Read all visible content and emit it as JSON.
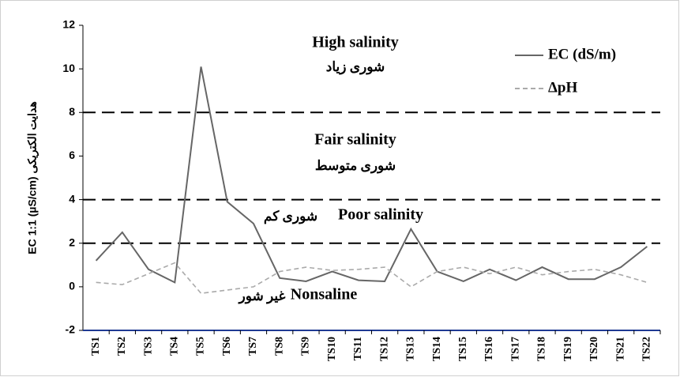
{
  "chart_data": {
    "type": "line",
    "y_label": "EC 1:1 (µS/cm)  هدایت الکتریکی",
    "categories": [
      "TS1",
      "TS2",
      "TS3",
      "TS4",
      "TS5",
      "TS6",
      "TS7",
      "TS8",
      "TS9",
      "TS10",
      "TS11",
      "TS12",
      "TS13",
      "TS14",
      "TS15",
      "TS16",
      "TS17",
      "TS18",
      "TS19",
      "TS20",
      "TS21",
      "TS22"
    ],
    "series": [
      {
        "name": "EC (dS/m)",
        "color": "#666666",
        "dashed": false,
        "values": [
          1.2,
          2.5,
          0.8,
          0.2,
          10.1,
          3.9,
          2.9,
          0.4,
          0.25,
          0.7,
          0.3,
          0.25,
          2.65,
          0.7,
          0.25,
          0.8,
          0.3,
          0.9,
          0.35,
          0.35,
          0.9,
          1.85
        ]
      },
      {
        "name": "ΔpH",
        "color": "#aaaaaa",
        "dashed": true,
        "values": [
          0.2,
          0.1,
          0.6,
          1.1,
          -0.3,
          -0.15,
          0,
          0.7,
          0.9,
          0.75,
          0.8,
          0.9,
          0,
          0.7,
          0.9,
          0.6,
          0.9,
          0.55,
          0.7,
          0.8,
          0.55,
          0.2
        ]
      }
    ],
    "reference_lines": [
      8,
      4,
      2
    ],
    "annotations": [
      "High salinity",
      "شوری زیاد",
      "Fair salinity",
      "شوری متوسط",
      "Poor salinity",
      "شوری کم",
      "Nonsaline",
      "غیر شور"
    ],
    "ylim": [
      -2,
      12
    ],
    "yticks": [
      -2,
      0,
      2,
      4,
      6,
      8,
      10,
      12
    ],
    "legend": "upper right",
    "grid": false
  }
}
